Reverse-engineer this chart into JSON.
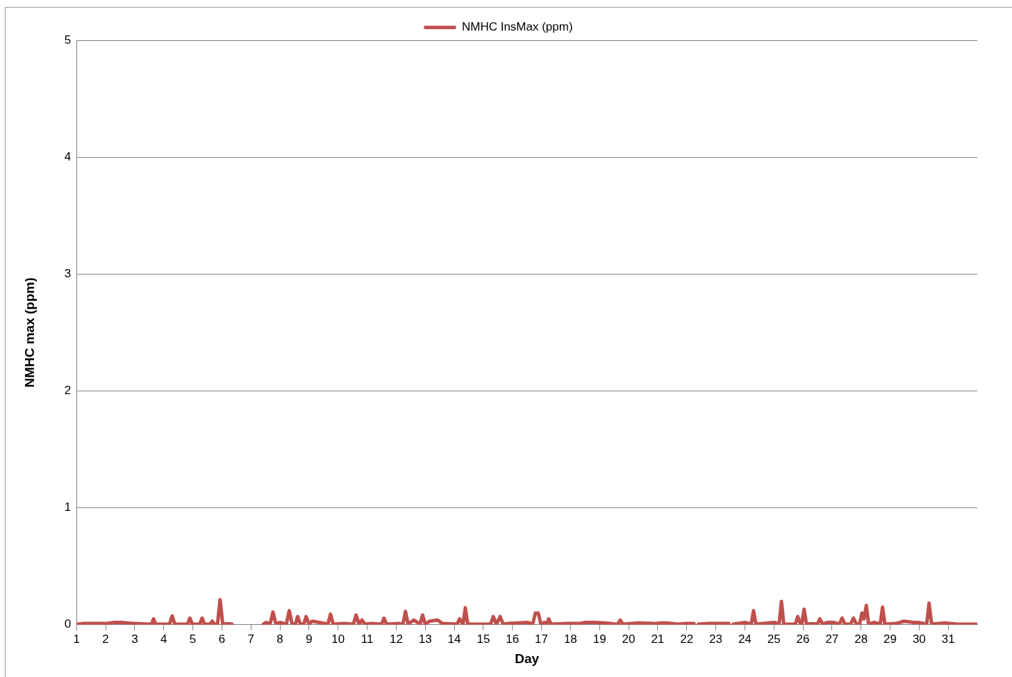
{
  "chart_data": {
    "type": "line",
    "xlabel": "Day",
    "ylabel": "NMHC max (ppm)",
    "xlim": [
      1,
      32
    ],
    "xticks": [
      1,
      2,
      3,
      4,
      5,
      6,
      7,
      8,
      9,
      10,
      11,
      12,
      13,
      14,
      15,
      16,
      17,
      18,
      19,
      20,
      21,
      22,
      23,
      24,
      25,
      26,
      27,
      28,
      29,
      30,
      31
    ],
    "ylim": [
      0,
      5
    ],
    "yticks": [
      0,
      1,
      2,
      3,
      4,
      5
    ],
    "grid": "y",
    "legend": "top",
    "marker": "none",
    "line_style": "solid",
    "series": [
      {
        "name": "NMHC InsMax (ppm)",
        "color": "#c0504d",
        "x": [
          1.0,
          1.2,
          1.5,
          1.8,
          2.0,
          2.3,
          2.55,
          3.0,
          3.5,
          3.58,
          3.65,
          3.72,
          4.2,
          4.29,
          4.38,
          4.82,
          4.9,
          4.98,
          5.24,
          5.32,
          5.4,
          5.6,
          5.67,
          5.75,
          5.85,
          5.94,
          6.03,
          6.2,
          6.35,
          6.9,
          7.43,
          7.53,
          7.66,
          7.76,
          7.86,
          8.0,
          8.22,
          8.32,
          8.42,
          8.53,
          8.61,
          8.7,
          8.82,
          8.9,
          9.0,
          9.1,
          9.35,
          9.65,
          9.74,
          9.83,
          10.2,
          10.53,
          10.62,
          10.72,
          10.82,
          10.92,
          11.1,
          11.5,
          11.58,
          11.67,
          12.1,
          12.23,
          12.32,
          12.41,
          12.61,
          12.82,
          12.91,
          13.0,
          13.15,
          13.42,
          13.6,
          14.1,
          14.18,
          14.3,
          14.38,
          14.46,
          15.25,
          15.34,
          15.45,
          15.58,
          15.68,
          15.85,
          16.52,
          16.7,
          16.79,
          16.89,
          16.98,
          17.1,
          17.18,
          17.25,
          17.33,
          17.9,
          18.3,
          18.5,
          18.83,
          19.2,
          19.55,
          19.63,
          19.71,
          19.8,
          20.35,
          20.9,
          21.1,
          21.3,
          21.7,
          22.0,
          22.25,
          22.31,
          22.4,
          22.75,
          23.0,
          23.25,
          23.45,
          23.52,
          23.6,
          24.0,
          24.22,
          24.3,
          24.38,
          25.01,
          25.18,
          25.26,
          25.34,
          25.74,
          25.82,
          25.92,
          25.96,
          26.04,
          26.12,
          26.3,
          26.5,
          26.58,
          26.68,
          26.85,
          27.05,
          27.25,
          27.35,
          27.44,
          27.64,
          27.74,
          27.84,
          27.95,
          28.03,
          28.1,
          28.18,
          28.26,
          28.45,
          28.66,
          28.74,
          28.82,
          29.2,
          29.48,
          29.8,
          29.97,
          30.26,
          30.34,
          30.43,
          30.88,
          31.3,
          32.0
        ],
        "values": [
          0.005,
          0.01,
          0.01,
          0.01,
          0.01,
          0.02,
          0.02,
          0.01,
          0.005,
          0.005,
          0.05,
          0.005,
          0.005,
          0.076,
          0.005,
          0.005,
          0.057,
          0.005,
          0.005,
          0.057,
          0.005,
          0.005,
          0.03,
          0.005,
          0.005,
          0.215,
          0.005,
          0.01,
          0.005,
          null,
          0.005,
          0.02,
          0.005,
          0.108,
          0.005,
          0.02,
          0.005,
          0.12,
          0.005,
          0.005,
          0.07,
          0.005,
          0.005,
          0.07,
          0.005,
          0.03,
          0.02,
          0.005,
          0.09,
          0.005,
          0.01,
          0.005,
          0.083,
          0.005,
          0.04,
          0.005,
          0.01,
          0.005,
          0.057,
          0.005,
          0.01,
          0.005,
          0.114,
          0.005,
          0.04,
          0.005,
          0.083,
          0.005,
          0.03,
          0.04,
          0.01,
          0.005,
          0.05,
          0.005,
          0.146,
          0.005,
          0.005,
          0.07,
          0.005,
          0.07,
          0.005,
          0.01,
          0.02,
          0.005,
          0.1,
          0.1,
          0.005,
          0.02,
          0.005,
          0.05,
          0.005,
          0.01,
          0.01,
          0.02,
          0.02,
          0.015,
          0.005,
          0.005,
          0.04,
          0.005,
          0.015,
          0.01,
          0.015,
          0.015,
          0.005,
          0.01,
          0.01,
          null,
          0.005,
          0.01,
          0.01,
          0.01,
          0.01,
          null,
          0.005,
          0.02,
          0.005,
          0.12,
          0.005,
          0.02,
          0.005,
          0.2,
          0.005,
          0.005,
          0.07,
          0.005,
          0.005,
          0.133,
          0.005,
          0.01,
          0.005,
          0.05,
          0.005,
          0.02,
          0.02,
          0.005,
          0.057,
          0.005,
          0.005,
          0.057,
          0.005,
          0.005,
          0.1,
          0.05,
          0.165,
          0.005,
          0.02,
          0.005,
          0.15,
          0.005,
          0.01,
          0.03,
          0.02,
          0.02,
          0.005,
          0.185,
          0.005,
          0.015,
          0.005,
          0.005
        ]
      }
    ]
  }
}
